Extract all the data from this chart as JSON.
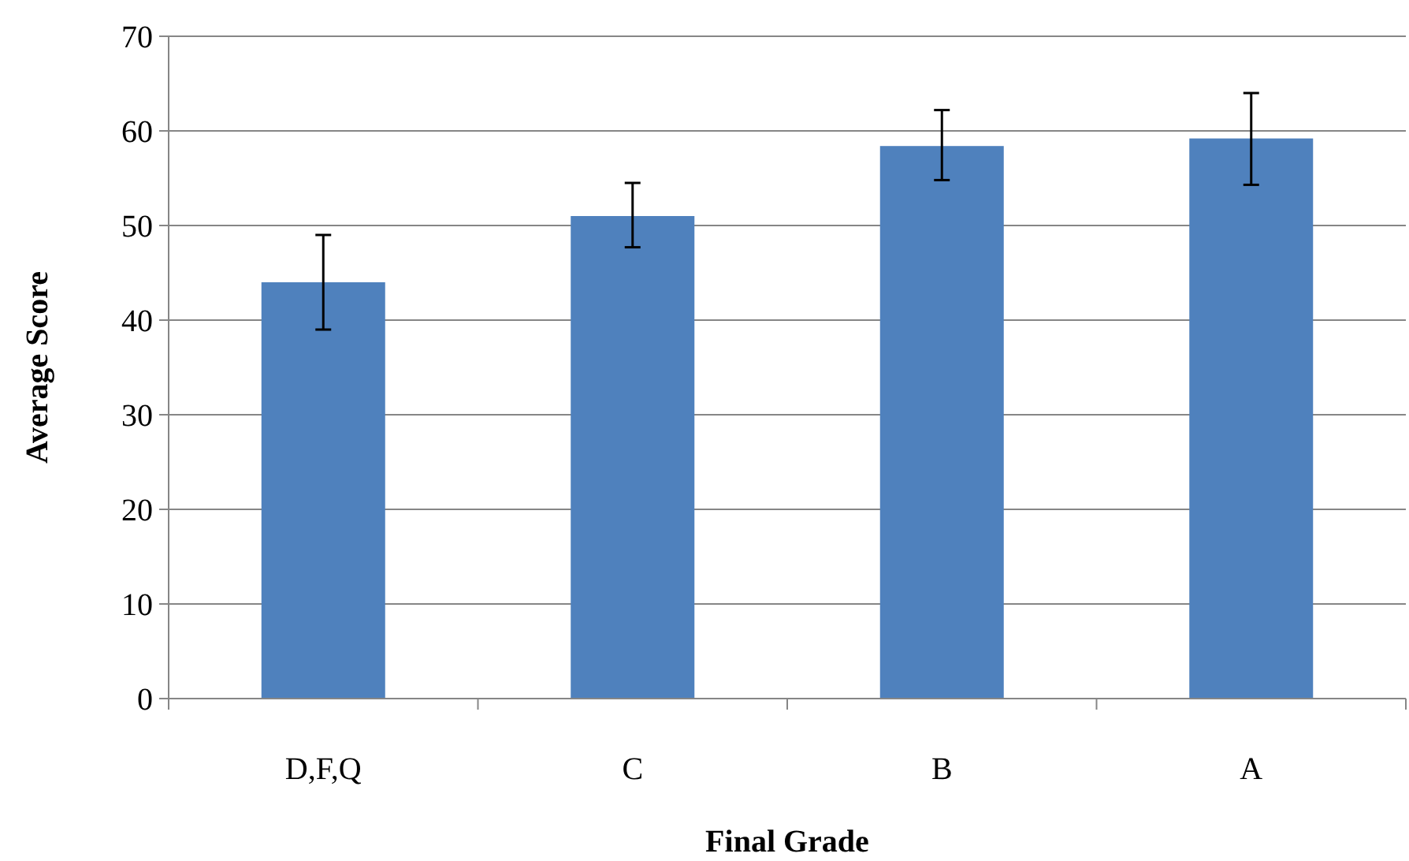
{
  "chart_data": {
    "type": "bar",
    "xlabel": "Final Grade",
    "ylabel": "Average Score",
    "categories": [
      "D,F,Q",
      "C",
      "B",
      "A"
    ],
    "values": [
      44,
      51,
      58.4,
      59.2
    ],
    "errors": [
      [
        39,
        49
      ],
      [
        47.7,
        54.5
      ],
      [
        54.8,
        62.2
      ],
      [
        54.3,
        64
      ]
    ],
    "color": "#4f81bd",
    "ylim": [
      0,
      70
    ],
    "yticks": [
      0,
      10,
      20,
      30,
      40,
      50,
      60,
      70
    ],
    "grid": "y"
  }
}
